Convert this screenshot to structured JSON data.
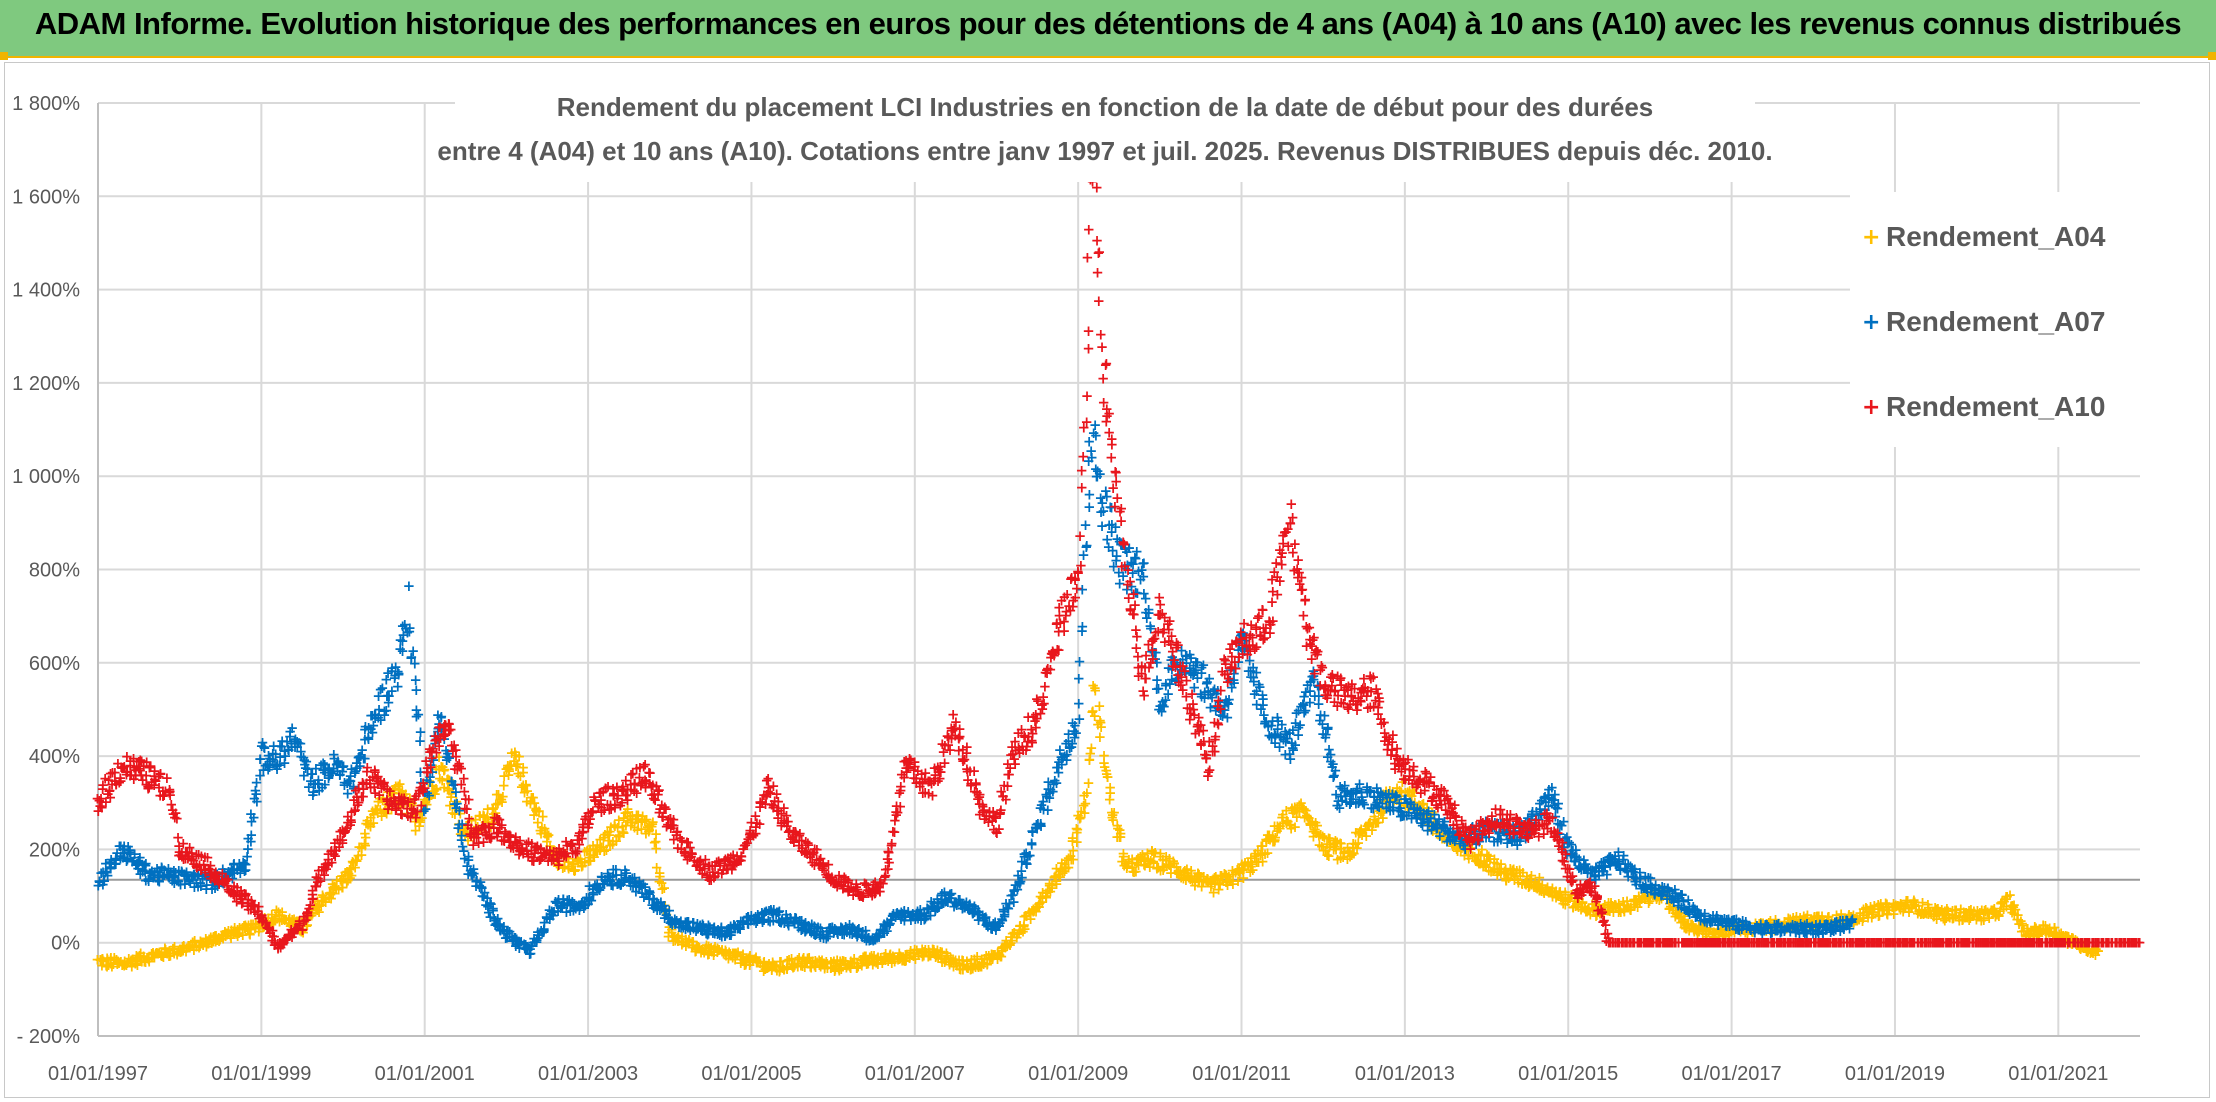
{
  "banner": {
    "title": "ADAM Informe. Evolution historique des performances en euros pour des détentions de 4 ans (A04) à 10 ans (A10) avec les revenus connus distribués"
  },
  "colors": {
    "banner_bg": "#7fc97f",
    "banner_border": "#f0b400",
    "A04": "#ffc000",
    "A07": "#0070c0",
    "A10": "#e8161c"
  },
  "chart_data": {
    "type": "scatter",
    "title_lines": [
      "Rendement du placement LCI Industries en fonction de la date de début pour des durées",
      "entre 4 (A04) et 10 ans (A10). Cotations entre janv 1997 et juil. 2025. Revenus DISTRIBUES depuis déc. 2010."
    ],
    "x_tick_labels": [
      "01/01/1997",
      "01/01/1999",
      "01/01/2001",
      "01/01/2003",
      "01/01/2005",
      "01/01/2007",
      "01/01/2009",
      "01/01/2011",
      "01/01/2013",
      "01/01/2015",
      "01/01/2017",
      "01/01/2019",
      "01/01/2021"
    ],
    "y_tick_labels": [
      "- 200%",
      "0%",
      "200%",
      "400%",
      "600%",
      "800%",
      "1 000%",
      "1 200%",
      "1 400%",
      "1 600%",
      "1 800%"
    ],
    "xlim": [
      1997.0,
      2022.0
    ],
    "ylim": [
      -200,
      1800
    ],
    "grid": true,
    "legend_position": "top-right",
    "series": [
      {
        "name": "Rendement_A04",
        "color_key": "A04",
        "x_end": 2021.5,
        "points": [
          [
            1997.0,
            -40
          ],
          [
            1997.3,
            -45
          ],
          [
            1997.6,
            -30
          ],
          [
            1998.0,
            -15
          ],
          [
            1998.3,
            0
          ],
          [
            1998.6,
            20
          ],
          [
            1998.9,
            30
          ],
          [
            1999.2,
            60
          ],
          [
            1999.5,
            30
          ],
          [
            1999.8,
            100
          ],
          [
            2000.1,
            150
          ],
          [
            2000.4,
            280
          ],
          [
            2000.7,
            320
          ],
          [
            2000.9,
            260
          ],
          [
            2001.2,
            380
          ],
          [
            2001.5,
            230
          ],
          [
            2001.8,
            270
          ],
          [
            2002.1,
            390
          ],
          [
            2002.3,
            310
          ],
          [
            2002.6,
            180
          ],
          [
            2002.9,
            170
          ],
          [
            2003.2,
            210
          ],
          [
            2003.5,
            270
          ],
          [
            2003.8,
            240
          ],
          [
            2004.0,
            20
          ],
          [
            2004.3,
            -10
          ],
          [
            2004.6,
            -20
          ],
          [
            2005.0,
            -40
          ],
          [
            2005.3,
            -55
          ],
          [
            2005.6,
            -40
          ],
          [
            2006.0,
            -50
          ],
          [
            2006.4,
            -40
          ],
          [
            2006.8,
            -30
          ],
          [
            2007.2,
            -20
          ],
          [
            2007.6,
            -50
          ],
          [
            2008.0,
            -30
          ],
          [
            2008.3,
            30
          ],
          [
            2008.6,
            110
          ],
          [
            2008.9,
            180
          ],
          [
            2009.1,
            320
          ],
          [
            2009.2,
            540
          ],
          [
            2009.4,
            300
          ],
          [
            2009.6,
            160
          ],
          [
            2009.9,
            180
          ],
          [
            2010.2,
            160
          ],
          [
            2010.6,
            120
          ],
          [
            2010.9,
            140
          ],
          [
            2011.2,
            180
          ],
          [
            2011.5,
            260
          ],
          [
            2011.8,
            280
          ],
          [
            2012.0,
            210
          ],
          [
            2012.3,
            190
          ],
          [
            2012.6,
            260
          ],
          [
            2012.9,
            330
          ],
          [
            2013.2,
            290
          ],
          [
            2013.5,
            220
          ],
          [
            2013.9,
            190
          ],
          [
            2014.2,
            150
          ],
          [
            2014.6,
            130
          ],
          [
            2014.9,
            100
          ],
          [
            2015.3,
            70
          ],
          [
            2015.8,
            80
          ],
          [
            2016.1,
            110
          ],
          [
            2016.5,
            30
          ],
          [
            2016.8,
            20
          ],
          [
            2017.2,
            30
          ],
          [
            2017.6,
            40
          ],
          [
            2018.0,
            50
          ],
          [
            2018.4,
            50
          ],
          [
            2018.8,
            70
          ],
          [
            2019.2,
            80
          ],
          [
            2019.6,
            60
          ],
          [
            2019.9,
            60
          ],
          [
            2020.2,
            60
          ],
          [
            2020.4,
            90
          ],
          [
            2020.6,
            20
          ],
          [
            2020.9,
            30
          ],
          [
            2021.2,
            0
          ],
          [
            2021.5,
            -20
          ]
        ]
      },
      {
        "name": "Rendement_A07",
        "color_key": "A07",
        "x_end": 2018.5,
        "points": [
          [
            1997.0,
            130
          ],
          [
            1997.3,
            200
          ],
          [
            1997.6,
            150
          ],
          [
            1998.0,
            140
          ],
          [
            1998.4,
            130
          ],
          [
            1998.8,
            170
          ],
          [
            1999.0,
            400
          ],
          [
            1999.2,
            390
          ],
          [
            1999.4,
            440
          ],
          [
            1999.6,
            340
          ],
          [
            1999.9,
            380
          ],
          [
            2000.1,
            340
          ],
          [
            2000.4,
            490
          ],
          [
            2000.7,
            600
          ],
          [
            2000.8,
            720
          ],
          [
            2001.0,
            300
          ],
          [
            2001.2,
            490
          ],
          [
            2001.5,
            180
          ],
          [
            2001.8,
            70
          ],
          [
            2002.0,
            20
          ],
          [
            2002.3,
            -20
          ],
          [
            2002.6,
            80
          ],
          [
            2002.9,
            80
          ],
          [
            2003.2,
            140
          ],
          [
            2003.5,
            140
          ],
          [
            2003.8,
            90
          ],
          [
            2004.1,
            40
          ],
          [
            2004.4,
            30
          ],
          [
            2004.7,
            20
          ],
          [
            2005.0,
            50
          ],
          [
            2005.3,
            60
          ],
          [
            2005.6,
            40
          ],
          [
            2005.9,
            20
          ],
          [
            2006.2,
            30
          ],
          [
            2006.5,
            10
          ],
          [
            2006.8,
            60
          ],
          [
            2007.1,
            60
          ],
          [
            2007.4,
            100
          ],
          [
            2007.7,
            70
          ],
          [
            2008.0,
            30
          ],
          [
            2008.2,
            100
          ],
          [
            2008.5,
            250
          ],
          [
            2008.8,
            400
          ],
          [
            2009.0,
            480
          ],
          [
            2009.15,
            1100
          ],
          [
            2009.3,
            950
          ],
          [
            2009.5,
            820
          ],
          [
            2009.8,
            780
          ],
          [
            2010.0,
            520
          ],
          [
            2010.3,
            620
          ],
          [
            2010.6,
            540
          ],
          [
            2010.8,
            500
          ],
          [
            2011.0,
            640
          ],
          [
            2011.3,
            480
          ],
          [
            2011.6,
            420
          ],
          [
            2011.9,
            560
          ],
          [
            2012.2,
            310
          ],
          [
            2012.5,
            320
          ],
          [
            2012.8,
            300
          ],
          [
            2013.1,
            280
          ],
          [
            2013.4,
            250
          ],
          [
            2013.7,
            220
          ],
          [
            2014.0,
            240
          ],
          [
            2014.4,
            230
          ],
          [
            2014.8,
            320
          ],
          [
            2015.0,
            200
          ],
          [
            2015.3,
            140
          ],
          [
            2015.6,
            180
          ],
          [
            2015.9,
            130
          ],
          [
            2016.3,
            100
          ],
          [
            2016.6,
            60
          ],
          [
            2017.0,
            40
          ],
          [
            2017.4,
            30
          ],
          [
            2017.8,
            30
          ],
          [
            2018.1,
            30
          ],
          [
            2018.5,
            40
          ]
        ]
      },
      {
        "name": "Rendement_A10",
        "color_key": "A10",
        "x_end": 2022.0,
        "points": [
          [
            1997.0,
            300
          ],
          [
            1997.3,
            380
          ],
          [
            1997.6,
            360
          ],
          [
            1997.9,
            320
          ],
          [
            1998.0,
            200
          ],
          [
            1998.3,
            170
          ],
          [
            1998.6,
            120
          ],
          [
            1998.8,
            90
          ],
          [
            1999.0,
            60
          ],
          [
            1999.2,
            -10
          ],
          [
            1999.5,
            40
          ],
          [
            1999.8,
            180
          ],
          [
            2000.0,
            230
          ],
          [
            2000.3,
            360
          ],
          [
            2000.6,
            300
          ],
          [
            2000.9,
            290
          ],
          [
            2001.1,
            420
          ],
          [
            2001.3,
            460
          ],
          [
            2001.6,
            230
          ],
          [
            2001.9,
            250
          ],
          [
            2002.2,
            200
          ],
          [
            2002.6,
            180
          ],
          [
            2002.9,
            220
          ],
          [
            2003.1,
            300
          ],
          [
            2003.4,
            320
          ],
          [
            2003.7,
            360
          ],
          [
            2004.0,
            250
          ],
          [
            2004.2,
            200
          ],
          [
            2004.5,
            150
          ],
          [
            2004.8,
            180
          ],
          [
            2005.0,
            230
          ],
          [
            2005.2,
            330
          ],
          [
            2005.5,
            230
          ],
          [
            2005.8,
            180
          ],
          [
            2006.0,
            140
          ],
          [
            2006.3,
            110
          ],
          [
            2006.6,
            120
          ],
          [
            2006.9,
            380
          ],
          [
            2007.2,
            330
          ],
          [
            2007.5,
            470
          ],
          [
            2007.8,
            300
          ],
          [
            2008.0,
            250
          ],
          [
            2008.2,
            400
          ],
          [
            2008.5,
            480
          ],
          [
            2008.8,
            700
          ],
          [
            2009.0,
            760
          ],
          [
            2009.1,
            1200
          ],
          [
            2009.15,
            1550
          ],
          [
            2009.2,
            1650
          ],
          [
            2009.3,
            1240
          ],
          [
            2009.5,
            900
          ],
          [
            2009.8,
            560
          ],
          [
            2010.0,
            720
          ],
          [
            2010.3,
            560
          ],
          [
            2010.6,
            380
          ],
          [
            2010.8,
            580
          ],
          [
            2011.0,
            640
          ],
          [
            2011.3,
            680
          ],
          [
            2011.6,
            900
          ],
          [
            2011.8,
            680
          ],
          [
            2012.0,
            560
          ],
          [
            2012.3,
            520
          ],
          [
            2012.6,
            540
          ],
          [
            2012.9,
            390
          ],
          [
            2013.2,
            350
          ],
          [
            2013.5,
            300
          ],
          [
            2013.8,
            220
          ],
          [
            2014.1,
            270
          ],
          [
            2014.5,
            240
          ],
          [
            2014.8,
            260
          ],
          [
            2015.1,
            110
          ],
          [
            2015.3,
            120
          ],
          [
            2015.5,
            0
          ],
          [
            2016.5,
            0
          ],
          [
            2017.5,
            0
          ],
          [
            2018.5,
            0
          ],
          [
            2019.5,
            0
          ],
          [
            2020.5,
            0
          ],
          [
            2021.5,
            0
          ],
          [
            2022.0,
            0
          ]
        ]
      }
    ]
  },
  "legend": {
    "items": [
      "Rendement_A04",
      "Rendement_A07",
      "Rendement_A10"
    ]
  }
}
